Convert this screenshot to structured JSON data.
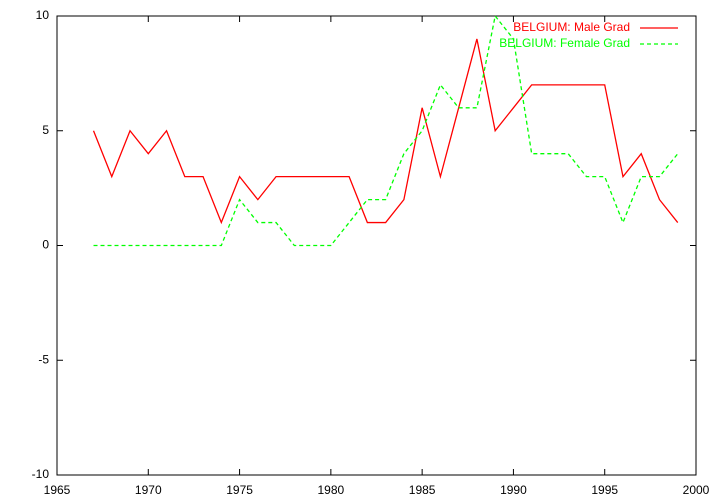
{
  "chart_data": {
    "type": "line",
    "x": [
      1967,
      1968,
      1969,
      1970,
      1971,
      1972,
      1973,
      1974,
      1975,
      1976,
      1977,
      1978,
      1979,
      1980,
      1981,
      1982,
      1983,
      1984,
      1985,
      1986,
      1987,
      1988,
      1989,
      1990,
      1991,
      1992,
      1993,
      1994,
      1995,
      1996,
      1997,
      1998,
      1999
    ],
    "series": [
      {
        "name": "BELGIUM: Male Grad",
        "color": "#ff0000",
        "dash": false,
        "values": [
          5,
          3,
          5,
          4,
          5,
          3,
          3,
          1,
          3,
          2,
          3,
          3,
          3,
          3,
          3,
          1,
          1,
          2,
          6,
          3,
          6,
          9,
          5,
          6,
          7,
          7,
          7,
          7,
          7,
          3,
          4,
          2,
          1
        ]
      },
      {
        "name": "BELGIUM: Female Grad",
        "color": "#00ff00",
        "dash": true,
        "values": [
          0,
          0,
          0,
          0,
          0,
          0,
          0,
          0,
          2,
          1,
          1,
          0,
          0,
          0,
          1,
          2,
          2,
          4,
          5,
          7,
          6,
          6,
          10,
          9,
          4,
          4,
          4,
          3,
          3,
          1,
          3,
          3,
          4
        ]
      }
    ],
    "xlim": [
      1965,
      2000
    ],
    "xticks": [
      1965,
      1970,
      1975,
      1980,
      1985,
      1990,
      1995,
      2000
    ],
    "ylim": [
      -10,
      10
    ],
    "yticks": [
      -10,
      -5,
      0,
      5,
      10
    ],
    "legend": "top-right"
  }
}
